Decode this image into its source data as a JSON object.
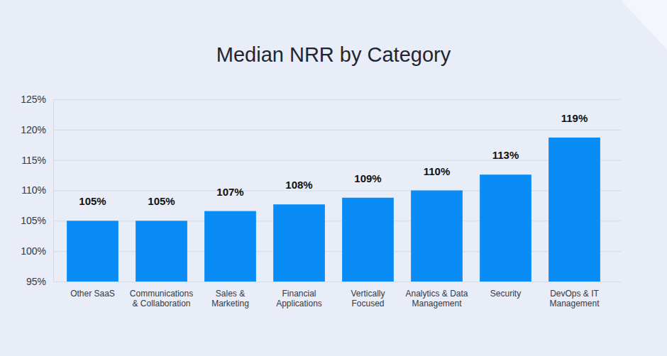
{
  "chart_data": {
    "type": "bar",
    "title": "Median NRR by Category",
    "categories": [
      "Other SaaS",
      "Communications & Collaboration",
      "Sales & Marketing",
      "Financial Applications",
      "Vertically Focused",
      "Analytics & Data Management",
      "Security",
      "DevOps & IT Management"
    ],
    "values": [
      105,
      105,
      106.6,
      107.7,
      108.8,
      110,
      112.6,
      118.7
    ],
    "value_labels": [
      "105%",
      "105%",
      "107%",
      "108%",
      "109%",
      "110%",
      "113%",
      "119%"
    ],
    "color": "#0a8cf7",
    "ylim": [
      95,
      125
    ],
    "yticks": [
      {
        "value": 95,
        "label": "95%"
      },
      {
        "value": 100,
        "label": "100%"
      },
      {
        "value": 105,
        "label": "105%"
      },
      {
        "value": 110,
        "label": "110%"
      },
      {
        "value": 115,
        "label": "115%"
      },
      {
        "value": 120,
        "label": "120%"
      },
      {
        "value": 125,
        "label": "125%"
      }
    ],
    "grid": true,
    "data_labels": true
  }
}
